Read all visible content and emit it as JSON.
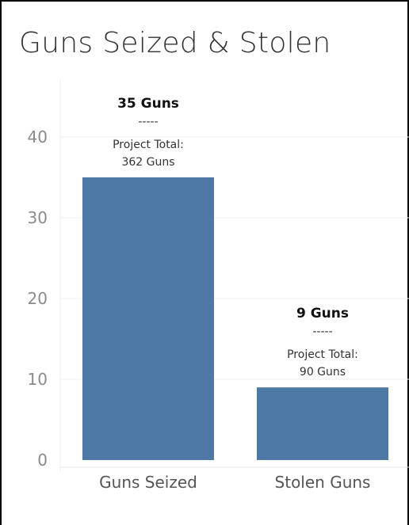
{
  "title": "Guns Seized & Stolen",
  "chart_data": {
    "type": "bar",
    "title": "Guns Seized & Stolen",
    "categories": [
      "Guns Seized",
      "Stolen Guns"
    ],
    "values": [
      35,
      9
    ],
    "ylim": [
      0,
      45
    ],
    "yticks": [
      0,
      10,
      20,
      30,
      40
    ],
    "grid": true,
    "bar_color": "#4e79a7",
    "data_labels": [
      {
        "main": "35 Guns",
        "separator": "-----",
        "line1": "Project Total:",
        "line2": "362 Guns"
      },
      {
        "main": "9 Guns",
        "separator": "-----",
        "line1": "Project Total:",
        "line2": "90 Guns"
      }
    ]
  }
}
